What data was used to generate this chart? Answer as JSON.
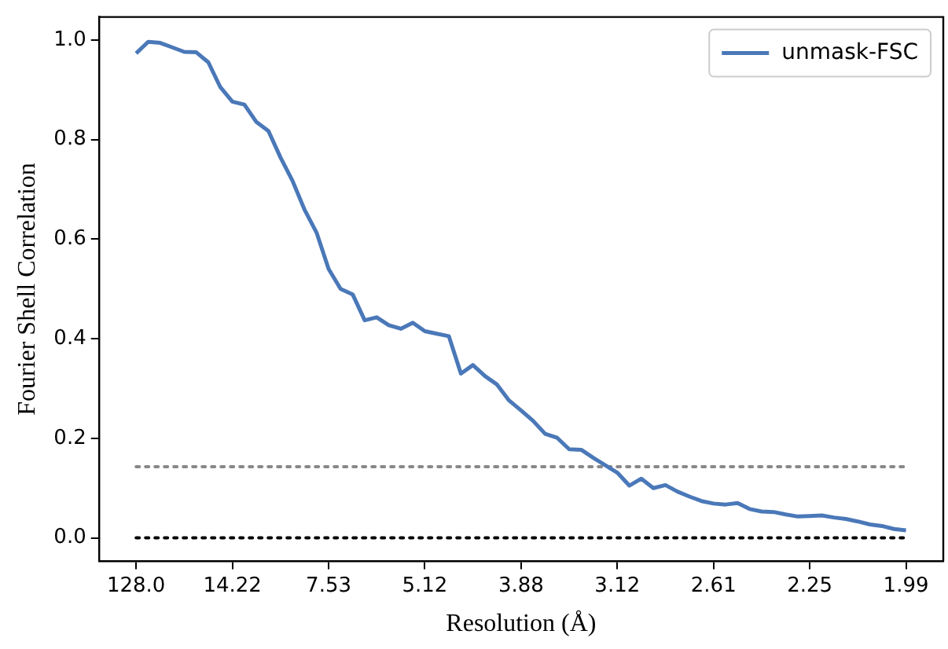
{
  "chart_data": {
    "type": "line",
    "xlabel": "Resolution (Å)",
    "ylabel": "Fourier Shell Correlation",
    "categories": [
      "128.0",
      null,
      null,
      null,
      null,
      null,
      null,
      null,
      "14.22",
      null,
      null,
      null,
      null,
      null,
      null,
      null,
      "7.53",
      null,
      null,
      null,
      null,
      null,
      null,
      null,
      "5.12",
      null,
      null,
      null,
      null,
      null,
      null,
      null,
      "3.88",
      null,
      null,
      null,
      null,
      null,
      null,
      null,
      "3.12",
      null,
      null,
      null,
      null,
      null,
      null,
      null,
      "2.61",
      null,
      null,
      null,
      null,
      null,
      null,
      null,
      "2.25",
      null,
      null,
      null,
      null,
      null,
      null,
      null,
      "1.99"
    ],
    "ylim": [
      -0.047,
      1.046
    ],
    "yticks": [
      {
        "value": 0,
        "label": "0.0"
      },
      0.2,
      0.4,
      0.6,
      0.8,
      {
        "value": 1,
        "label": "1.0"
      }
    ],
    "grid": false,
    "legend": "top right",
    "marker": "none",
    "series": [
      {
        "name": "unmask-FSC",
        "color": "#4a78b8",
        "line_style": "solid",
        "values": [
          0.973,
          0.996,
          0.994,
          0.985,
          0.976,
          0.975,
          0.955,
          0.905,
          0.876,
          0.87,
          0.835,
          0.817,
          0.764,
          0.717,
          0.659,
          0.613,
          0.54,
          0.5,
          0.489,
          0.437,
          0.443,
          0.427,
          0.42,
          0.432,
          0.415,
          0.41,
          0.405,
          0.33,
          0.347,
          0.325,
          0.308,
          0.276,
          0.256,
          0.235,
          0.209,
          0.201,
          0.178,
          0.177,
          0.161,
          0.146,
          0.131,
          0.105,
          0.119,
          0.1,
          0.106,
          0.093,
          0.083,
          0.074,
          0.069,
          0.067,
          0.07,
          0.058,
          0.053,
          0.052,
          0.047,
          0.043,
          0.044,
          0.045,
          0.041,
          0.038,
          0.033,
          0.027,
          0.024,
          0.018,
          0.015
        ]
      },
      {
        "color": "#888888",
        "line_style": "dotted",
        "values": [
          0.143,
          0.143,
          0.143,
          0.143,
          0.143,
          0.143,
          0.143,
          0.143,
          0.143,
          0.143,
          0.143,
          0.143,
          0.143,
          0.143,
          0.143,
          0.143,
          0.143,
          0.143,
          0.143,
          0.143,
          0.143,
          0.143,
          0.143,
          0.143,
          0.143,
          0.143,
          0.143,
          0.143,
          0.143,
          0.143,
          0.143,
          0.143,
          0.143,
          0.143,
          0.143,
          0.143,
          0.143,
          0.143,
          0.143,
          0.143,
          0.143,
          0.143,
          0.143,
          0.143,
          0.143,
          0.143,
          0.143,
          0.143,
          0.143,
          0.143,
          0.143,
          0.143,
          0.143,
          0.143,
          0.143,
          0.143,
          0.143,
          0.143,
          0.143,
          0.143,
          0.143,
          0.143,
          0.143,
          0.143,
          0.143
        ]
      },
      {
        "color": "#000000",
        "line_style": "dotted",
        "values": [
          0,
          0,
          0,
          0,
          0,
          0,
          0,
          0,
          0,
          0,
          0,
          0,
          0,
          0,
          0,
          0,
          0,
          0,
          0,
          0,
          0,
          0,
          0,
          0,
          0,
          0,
          0,
          0,
          0,
          0,
          0,
          0,
          0,
          0,
          0,
          0,
          0,
          0,
          0,
          0,
          0,
          0,
          0,
          0,
          0,
          0,
          0,
          0,
          0,
          0,
          0,
          0,
          0,
          0,
          0,
          0,
          0,
          0,
          0,
          0,
          0,
          0,
          0,
          0,
          0
        ]
      }
    ]
  }
}
